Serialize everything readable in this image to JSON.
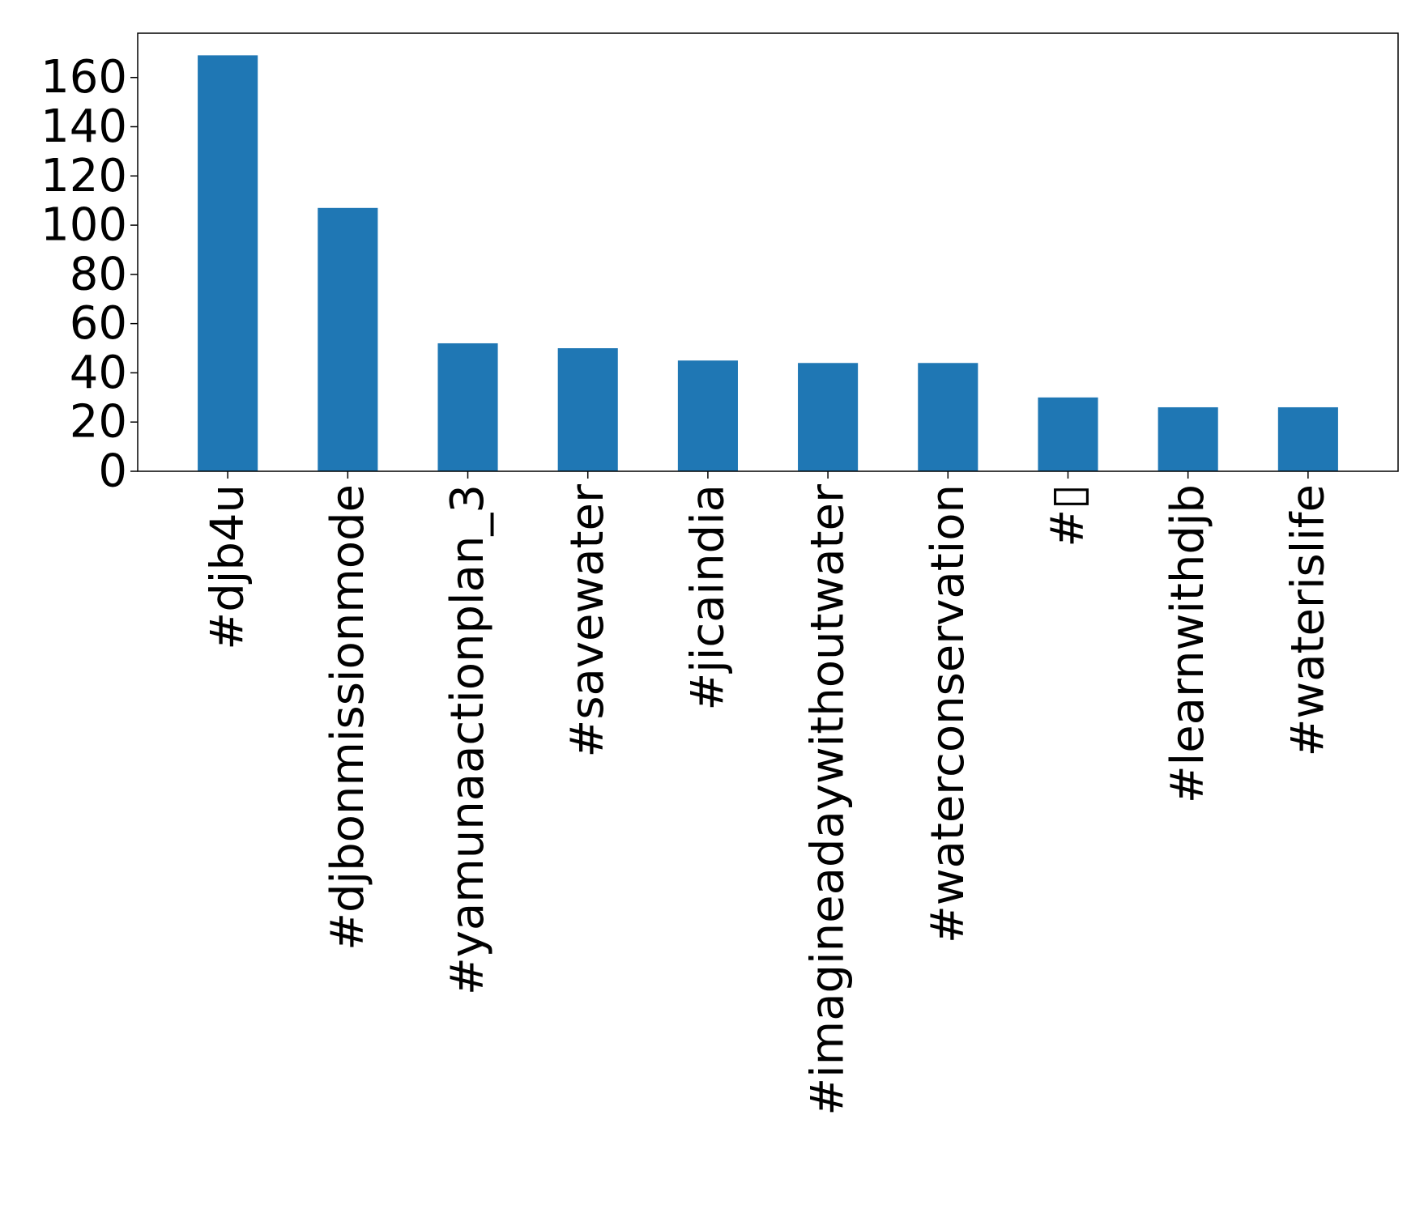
{
  "chart_data": {
    "type": "bar",
    "title": "",
    "xlabel": "",
    "ylabel": "",
    "categories": [
      "#djb4u",
      "#djbonmissionmode",
      "#yamunaactionplan_3",
      "#savewater",
      "#jicaindia",
      "#imagineadaywithoutwater",
      "#waterconservation",
      "#▯",
      "#learnwithdjb",
      "#waterislife"
    ],
    "values": [
      169,
      107,
      52,
      50,
      45,
      44,
      44,
      30,
      26,
      26
    ],
    "ylim": [
      0,
      178
    ],
    "yticks": [
      0,
      20,
      40,
      60,
      80,
      100,
      120,
      140,
      160
    ],
    "grid": false,
    "legend": "none",
    "bar_color": "#1f77b4"
  }
}
